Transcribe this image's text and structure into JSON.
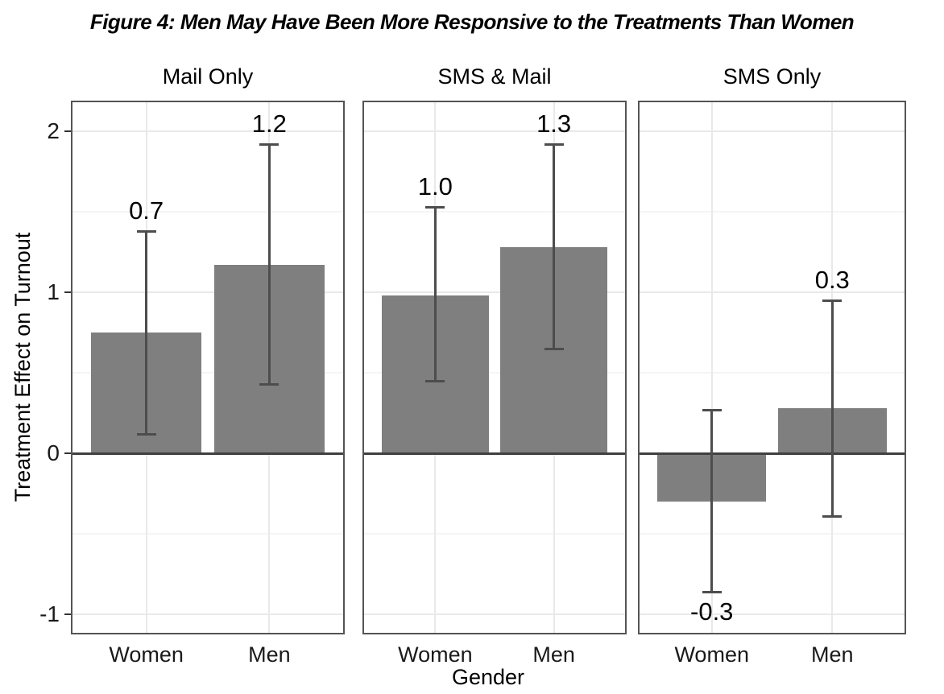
{
  "title": "Figure 4: Men May Have Been More Responsive to the Treatments Than Women",
  "colors": {
    "bar_fill": "#7f7f7f",
    "error_bar": "#4d4d4d",
    "zero_line": "#404040",
    "panel_border": "#545454",
    "grid_major": "#e9e9e9",
    "grid_minor": "#f5f5f5",
    "tick_mark": "#333333",
    "text": "#000000",
    "background": "#ffffff"
  },
  "chart_data": {
    "type": "bar",
    "title": "Figure 4: Men May Have Been More Responsive to the Treatments Than Women",
    "xlabel": "Gender",
    "ylabel": "Treatment Effect on Turnout",
    "categories": [
      "Women",
      "Men"
    ],
    "y_ticks": [
      2,
      1,
      0,
      -1
    ],
    "ylim": [
      -1.125,
      2.19
    ],
    "grid": true,
    "legend": "none",
    "facets": [
      {
        "label": "Mail Only",
        "bars": [
          {
            "category": "Women",
            "value": 0.75,
            "ci_low": 0.12,
            "ci_high": 1.38,
            "label": "0.7",
            "label_position": "above"
          },
          {
            "category": "Men",
            "value": 1.17,
            "ci_low": 0.43,
            "ci_high": 1.92,
            "label": "1.2",
            "label_position": "above"
          }
        ]
      },
      {
        "label": "SMS & Mail",
        "bars": [
          {
            "category": "Women",
            "value": 0.98,
            "ci_low": 0.45,
            "ci_high": 1.53,
            "label": "1.0",
            "label_position": "above"
          },
          {
            "category": "Men",
            "value": 1.28,
            "ci_low": 0.65,
            "ci_high": 1.92,
            "label": "1.3",
            "label_position": "above"
          }
        ]
      },
      {
        "label": "SMS Only",
        "bars": [
          {
            "category": "Women",
            "value": -0.3,
            "ci_low": -0.86,
            "ci_high": 0.27,
            "label": "-0.3",
            "label_position": "below"
          },
          {
            "category": "Men",
            "value": 0.28,
            "ci_low": -0.39,
            "ci_high": 0.95,
            "label": "0.3",
            "label_position": "above"
          }
        ]
      }
    ]
  }
}
